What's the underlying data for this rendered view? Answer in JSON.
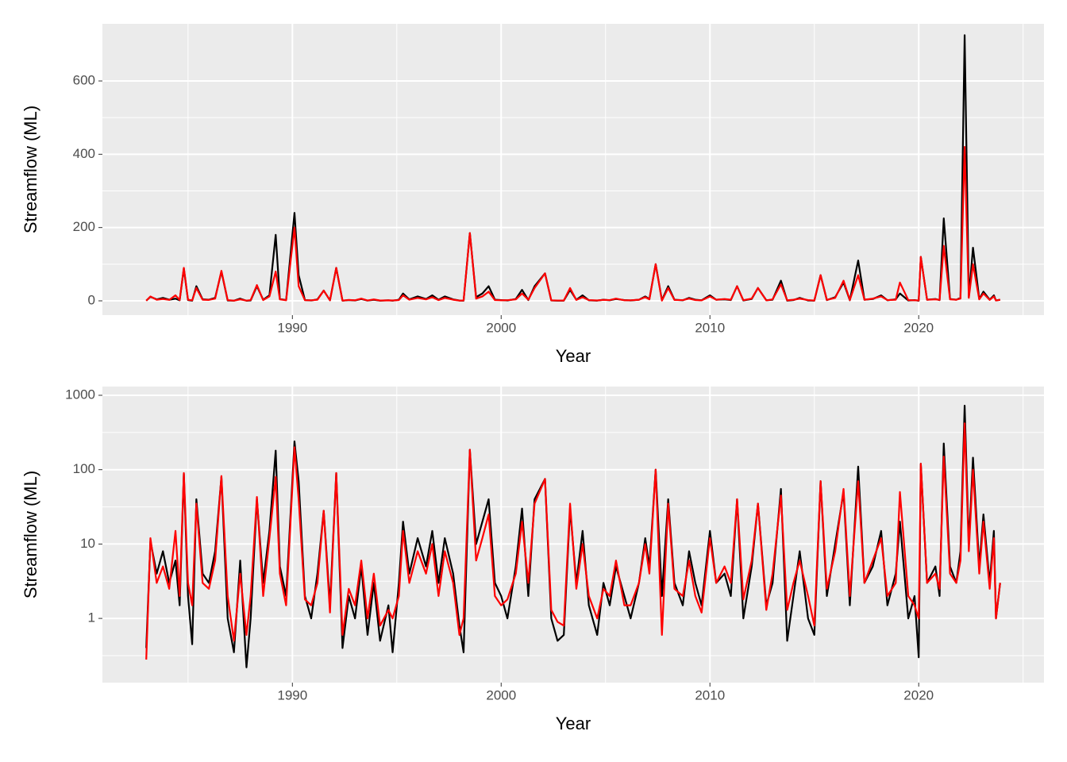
{
  "chart_data": [
    {
      "type": "line",
      "xlabel": "Year",
      "ylabel": "Streamflow (ML)",
      "xlim": [
        1980.9,
        2026.0
      ],
      "xticks": [
        1990,
        2000,
        2010,
        2020
      ],
      "xminor": [
        1985,
        1995,
        2005,
        2015,
        2025
      ],
      "ylim": [
        -39,
        756
      ],
      "yticks": [
        0,
        200,
        400,
        600
      ],
      "yminor": [
        100,
        300,
        500
      ],
      "ylog": false,
      "grid": true,
      "x": [
        1983.0,
        1983.2,
        1983.5,
        1983.8,
        1984.1,
        1984.4,
        1984.6,
        1984.8,
        1985.0,
        1985.2,
        1985.4,
        1985.7,
        1986.0,
        1986.3,
        1986.6,
        1986.9,
        1987.2,
        1987.5,
        1987.8,
        1988.0,
        1988.3,
        1988.6,
        1988.9,
        1989.2,
        1989.4,
        1989.7,
        1990.1,
        1990.3,
        1990.6,
        1990.9,
        1991.2,
        1991.5,
        1991.8,
        1992.1,
        1992.4,
        1992.7,
        1993.0,
        1993.3,
        1993.6,
        1993.9,
        1994.2,
        1994.6,
        1994.8,
        1995.1,
        1995.3,
        1995.6,
        1996.0,
        1996.4,
        1996.7,
        1997.0,
        1997.3,
        1997.7,
        1998.0,
        1998.2,
        1998.5,
        1998.8,
        1999.1,
        1999.4,
        1999.7,
        2000.0,
        2000.3,
        2000.7,
        2001.0,
        2001.3,
        2001.6,
        2002.1,
        2002.4,
        2002.7,
        2003.0,
        2003.3,
        2003.6,
        2003.9,
        2004.2,
        2004.6,
        2004.9,
        2005.2,
        2005.5,
        2005.9,
        2006.2,
        2006.6,
        2006.9,
        2007.1,
        2007.4,
        2007.7,
        2008.0,
        2008.3,
        2008.7,
        2009.0,
        2009.3,
        2009.6,
        2010.0,
        2010.3,
        2010.7,
        2011.0,
        2011.3,
        2011.6,
        2012.0,
        2012.3,
        2012.7,
        2013.0,
        2013.4,
        2013.7,
        2014.0,
        2014.3,
        2014.7,
        2015.0,
        2015.3,
        2015.6,
        2016.0,
        2016.4,
        2016.7,
        2017.1,
        2017.4,
        2017.8,
        2018.2,
        2018.5,
        2018.9,
        2019.1,
        2019.5,
        2019.8,
        2020.0,
        2020.1,
        2020.4,
        2020.8,
        2021.0,
        2021.2,
        2021.5,
        2021.8,
        2022.0,
        2022.2,
        2022.4,
        2022.6,
        2022.9,
        2023.1,
        2023.4,
        2023.6,
        2023.7,
        2023.9
      ],
      "series": [
        {
          "color": "#000000",
          "values": [
            0.4,
            11,
            4,
            8,
            3,
            6,
            1.5,
            88,
            2,
            0.45,
            40,
            4,
            3,
            8,
            80,
            1,
            0.35,
            6,
            0.22,
            1,
            40,
            3,
            15,
            180,
            5,
            2,
            240,
            70,
            2,
            1,
            4,
            28,
            1.5,
            90,
            0.4,
            2,
            1,
            5,
            0.6,
            3,
            0.5,
            1.5,
            0.35,
            3,
            20,
            4,
            12,
            5,
            15,
            3,
            12,
            4,
            0.8,
            0.35,
            185,
            10,
            20,
            40,
            3,
            2,
            1,
            5,
            30,
            2,
            40,
            75,
            1,
            0.5,
            0.6,
            30,
            3,
            15,
            1.5,
            0.6,
            3,
            1.5,
            5,
            2,
            1,
            3,
            12,
            5,
            100,
            2,
            40,
            3,
            1.5,
            8,
            3,
            1.5,
            15,
            3,
            4,
            2,
            40,
            1,
            5,
            35,
            1.5,
            3,
            55,
            0.5,
            2,
            8,
            1,
            0.6,
            70,
            2,
            10,
            50,
            1.5,
            110,
            3,
            5,
            15,
            1.5,
            4,
            20,
            1,
            2,
            0.3,
            120,
            3,
            5,
            2,
            225,
            5,
            3,
            8,
            725,
            10,
            145,
            5,
            25,
            3,
            15,
            1,
            3
          ]
        },
        {
          "color": "#ff0000",
          "values": [
            0.28,
            12,
            3,
            5,
            2.5,
            15,
            2,
            90,
            3,
            1.5,
            35,
            3,
            2.5,
            6,
            82,
            2,
            0.5,
            4,
            0.6,
            2,
            43,
            2,
            12,
            80,
            4,
            1.5,
            200,
            40,
            1.8,
            1.5,
            3,
            28,
            1.2,
            90,
            0.6,
            2.5,
            1.5,
            6,
            1,
            4,
            0.8,
            1.3,
            1,
            2,
            15,
            3,
            8,
            4,
            10,
            2,
            8,
            3,
            0.6,
            1,
            185,
            6,
            12,
            25,
            2,
            1.5,
            1.8,
            4,
            20,
            3,
            35,
            75,
            1.3,
            0.9,
            0.8,
            35,
            2.5,
            10,
            2,
            1,
            2.5,
            2,
            6,
            1.5,
            1.5,
            3,
            10,
            4,
            100,
            0.6,
            35,
            2.5,
            2,
            6,
            2,
            1.2,
            12,
            3,
            5,
            3,
            40,
            1.8,
            6,
            35,
            1.3,
            4,
            45,
            1.3,
            3,
            6,
            2,
            0.8,
            70,
            2.5,
            8,
            55,
            2,
            70,
            3,
            6,
            12,
            2,
            3,
            50,
            2,
            1.5,
            1,
            120,
            3,
            4,
            2.5,
            150,
            4,
            3,
            6,
            420,
            8,
            100,
            4,
            20,
            2.5,
            12,
            1,
            3
          ]
        }
      ]
    },
    {
      "type": "line",
      "xlabel": "Year",
      "ylabel": "Streamflow (ML)",
      "xlim": [
        1980.9,
        2026.0
      ],
      "xticks": [
        1990,
        2000,
        2010,
        2020
      ],
      "xminor": [
        1985,
        1995,
        2005,
        2015,
        2025
      ],
      "ylim": [
        0.137,
        1310
      ],
      "yticks": [
        1,
        10,
        100,
        1000
      ],
      "yminor": [
        0.316,
        3.16,
        31.6,
        316
      ],
      "ylog": true,
      "grid": true,
      "x": [
        1983.0,
        1983.2,
        1983.5,
        1983.8,
        1984.1,
        1984.4,
        1984.6,
        1984.8,
        1985.0,
        1985.2,
        1985.4,
        1985.7,
        1986.0,
        1986.3,
        1986.6,
        1986.9,
        1987.2,
        1987.5,
        1987.8,
        1988.0,
        1988.3,
        1988.6,
        1988.9,
        1989.2,
        1989.4,
        1989.7,
        1990.1,
        1990.3,
        1990.6,
        1990.9,
        1991.2,
        1991.5,
        1991.8,
        1992.1,
        1992.4,
        1992.7,
        1993.0,
        1993.3,
        1993.6,
        1993.9,
        1994.2,
        1994.6,
        1994.8,
        1995.1,
        1995.3,
        1995.6,
        1996.0,
        1996.4,
        1996.7,
        1997.0,
        1997.3,
        1997.7,
        1998.0,
        1998.2,
        1998.5,
        1998.8,
        1999.1,
        1999.4,
        1999.7,
        2000.0,
        2000.3,
        2000.7,
        2001.0,
        2001.3,
        2001.6,
        2002.1,
        2002.4,
        2002.7,
        2003.0,
        2003.3,
        2003.6,
        2003.9,
        2004.2,
        2004.6,
        2004.9,
        2005.2,
        2005.5,
        2005.9,
        2006.2,
        2006.6,
        2006.9,
        2007.1,
        2007.4,
        2007.7,
        2008.0,
        2008.3,
        2008.7,
        2009.0,
        2009.3,
        2009.6,
        2010.0,
        2010.3,
        2010.7,
        2011.0,
        2011.3,
        2011.6,
        2012.0,
        2012.3,
        2012.7,
        2013.0,
        2013.4,
        2013.7,
        2014.0,
        2014.3,
        2014.7,
        2015.0,
        2015.3,
        2015.6,
        2016.0,
        2016.4,
        2016.7,
        2017.1,
        2017.4,
        2017.8,
        2018.2,
        2018.5,
        2018.9,
        2019.1,
        2019.5,
        2019.8,
        2020.0,
        2020.1,
        2020.4,
        2020.8,
        2021.0,
        2021.2,
        2021.5,
        2021.8,
        2022.0,
        2022.2,
        2022.4,
        2022.6,
        2022.9,
        2023.1,
        2023.4,
        2023.6,
        2023.7,
        2023.9
      ],
      "series": [
        {
          "color": "#000000",
          "values": [
            0.4,
            11,
            4,
            8,
            3,
            6,
            1.5,
            88,
            2,
            0.45,
            40,
            4,
            3,
            8,
            80,
            1,
            0.35,
            6,
            0.22,
            1,
            40,
            3,
            15,
            180,
            5,
            2,
            240,
            70,
            2,
            1,
            4,
            28,
            1.5,
            90,
            0.4,
            2,
            1,
            5,
            0.6,
            3,
            0.5,
            1.5,
            0.35,
            3,
            20,
            4,
            12,
            5,
            15,
            3,
            12,
            4,
            0.8,
            0.35,
            185,
            10,
            20,
            40,
            3,
            2,
            1,
            5,
            30,
            2,
            40,
            75,
            1,
            0.5,
            0.6,
            30,
            3,
            15,
            1.5,
            0.6,
            3,
            1.5,
            5,
            2,
            1,
            3,
            12,
            5,
            100,
            2,
            40,
            3,
            1.5,
            8,
            3,
            1.5,
            15,
            3,
            4,
            2,
            40,
            1,
            5,
            35,
            1.5,
            3,
            55,
            0.5,
            2,
            8,
            1,
            0.6,
            70,
            2,
            10,
            50,
            1.5,
            110,
            3,
            5,
            15,
            1.5,
            4,
            20,
            1,
            2,
            0.3,
            120,
            3,
            5,
            2,
            225,
            5,
            3,
            8,
            725,
            10,
            145,
            5,
            25,
            3,
            15,
            1,
            3
          ]
        },
        {
          "color": "#ff0000",
          "values": [
            0.28,
            12,
            3,
            5,
            2.5,
            15,
            2,
            90,
            3,
            1.5,
            35,
            3,
            2.5,
            6,
            82,
            2,
            0.5,
            4,
            0.6,
            2,
            43,
            2,
            12,
            80,
            4,
            1.5,
            200,
            40,
            1.8,
            1.5,
            3,
            28,
            1.2,
            90,
            0.6,
            2.5,
            1.5,
            6,
            1,
            4,
            0.8,
            1.3,
            1,
            2,
            15,
            3,
            8,
            4,
            10,
            2,
            8,
            3,
            0.6,
            1,
            185,
            6,
            12,
            25,
            2,
            1.5,
            1.8,
            4,
            20,
            3,
            35,
            75,
            1.3,
            0.9,
            0.8,
            35,
            2.5,
            10,
            2,
            1,
            2.5,
            2,
            6,
            1.5,
            1.5,
            3,
            10,
            4,
            100,
            0.6,
            35,
            2.5,
            2,
            6,
            2,
            1.2,
            12,
            3,
            5,
            3,
            40,
            1.8,
            6,
            35,
            1.3,
            4,
            45,
            1.3,
            3,
            6,
            2,
            0.8,
            70,
            2.5,
            8,
            55,
            2,
            70,
            3,
            6,
            12,
            2,
            3,
            50,
            2,
            1.5,
            1,
            120,
            3,
            4,
            2.5,
            150,
            4,
            3,
            6,
            420,
            8,
            100,
            4,
            20,
            2.5,
            12,
            1,
            3
          ]
        }
      ]
    }
  ]
}
